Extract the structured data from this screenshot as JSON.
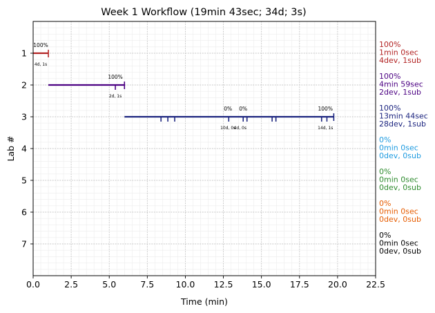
{
  "chart_data": {
    "type": "timeline",
    "title": "Week 1 Workflow (19min 43sec; 34d; 3s)",
    "xlabel": "Time (min)",
    "ylabel": "Lab #",
    "xlim": [
      0,
      22.5
    ],
    "ylim": [
      8,
      0
    ],
    "xticks": [
      "0.0",
      "2.5",
      "5.0",
      "7.5",
      "10.0",
      "12.5",
      "15.0",
      "17.5",
      "20.0",
      "22.5"
    ],
    "yticks": [
      "1",
      "2",
      "3",
      "4",
      "5",
      "6",
      "7"
    ],
    "grid": true,
    "labs": [
      {
        "lab": 1,
        "color": "#b22222",
        "start": 0.0,
        "end": 1.0,
        "markers": [
          {
            "x": 1.0,
            "tall": true
          }
        ],
        "annotations_top": [
          {
            "x": 0.5,
            "text": "100%"
          }
        ],
        "annotations_bottom": [
          {
            "x": 0.5,
            "text": "4d, 1s"
          }
        ],
        "summary": [
          "100%",
          "1min 0sec",
          "4dev, 1sub"
        ]
      },
      {
        "lab": 2,
        "color": "#4b0082",
        "start": 1.0,
        "end": 6.0,
        "markers": [
          {
            "x": 5.4,
            "tall": false
          },
          {
            "x": 6.0,
            "tall": true
          }
        ],
        "annotations_top": [
          {
            "x": 5.4,
            "text": "100%"
          }
        ],
        "annotations_bottom": [
          {
            "x": 5.4,
            "text": "2d, 1s"
          }
        ],
        "summary": [
          "100%",
          "4min 59sec",
          "2dev, 1sub"
        ]
      },
      {
        "lab": 3,
        "color": "#1a237e",
        "start": 6.0,
        "end": 19.75,
        "markers": [
          {
            "x": 8.4,
            "tall": false
          },
          {
            "x": 8.85,
            "tall": false
          },
          {
            "x": 9.3,
            "tall": false
          },
          {
            "x": 12.85,
            "tall": false
          },
          {
            "x": 13.8,
            "tall": false
          },
          {
            "x": 14.05,
            "tall": false
          },
          {
            "x": 15.7,
            "tall": false
          },
          {
            "x": 15.95,
            "tall": false
          },
          {
            "x": 18.95,
            "tall": false
          },
          {
            "x": 19.3,
            "tall": false
          },
          {
            "x": 19.75,
            "tall": true
          }
        ],
        "annotations_top": [
          {
            "x": 12.8,
            "text": "0%"
          },
          {
            "x": 13.8,
            "text": "0%"
          },
          {
            "x": 19.2,
            "text": "100%"
          }
        ],
        "annotations_bottom": [
          {
            "x": 12.8,
            "text": "10d, 0s"
          },
          {
            "x": 13.6,
            "text": "4d, 0s"
          },
          {
            "x": 19.2,
            "text": "14d, 1s"
          }
        ],
        "summary": [
          "100%",
          "13min 44sec",
          "28dev, 1sub"
        ]
      },
      {
        "lab": 4,
        "color": "#1e9be0",
        "summary": [
          "0%",
          "0min 0sec",
          "0dev, 0sub"
        ]
      },
      {
        "lab": 5,
        "color": "#2e8b2e",
        "summary": [
          "0%",
          "0min 0sec",
          "0dev, 0sub"
        ]
      },
      {
        "lab": 6,
        "color": "#e65c00",
        "summary": [
          "0%",
          "0min 0sec",
          "0dev, 0sub"
        ]
      },
      {
        "lab": 7,
        "color": "#000000",
        "summary": [
          "0%",
          "0min 0sec",
          "0dev, 0sub"
        ]
      }
    ]
  }
}
